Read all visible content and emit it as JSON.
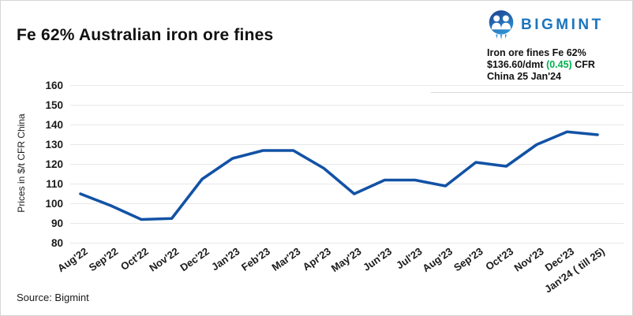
{
  "page": {
    "title": "Fe 62% Australian iron ore fines",
    "source": "Source: Bigmint"
  },
  "brand": {
    "name": "BIGMINT",
    "icon": "bigmint-people-icon",
    "text_color": "#1b75bc",
    "icon_color_top": "#1c3f8e",
    "icon_color_bottom": "#2e8fd0"
  },
  "info_box": {
    "line1": "Iron ore fines Fe 62%",
    "price": "$136.60/dmt",
    "change": "(0.45)",
    "suffix": "CFR",
    "line3": "China 25 Jan'24",
    "change_color": "#00b050"
  },
  "chart_data": {
    "type": "line",
    "title": "Fe 62% Australian iron ore fines",
    "xlabel": "",
    "ylabel": "Prices in $/t CFR China",
    "categories": [
      "Aug'22",
      "Sep'22",
      "Oct'22",
      "Nov'22",
      "Dec'22",
      "Jan'23",
      "Feb'23",
      "Mar'23",
      "Apr'23",
      "May'23",
      "Jun'23",
      "Jul'23",
      "Aug'23",
      "Sep'23",
      "Oct'23",
      "Nov'23",
      "Dec'23",
      "Jan'24 ( till 25)"
    ],
    "values": [
      105,
      99,
      92,
      92.5,
      112.5,
      123,
      127,
      127,
      118,
      105,
      112,
      112,
      109,
      121,
      119,
      130,
      136.5,
      135
    ],
    "ylim": [
      80,
      160
    ],
    "ytick_step": 10,
    "grid": true,
    "legend": "none",
    "line_color": "#1252a5",
    "grid_color": "#e8e8e8",
    "tick_color": "#1a1a1a"
  }
}
